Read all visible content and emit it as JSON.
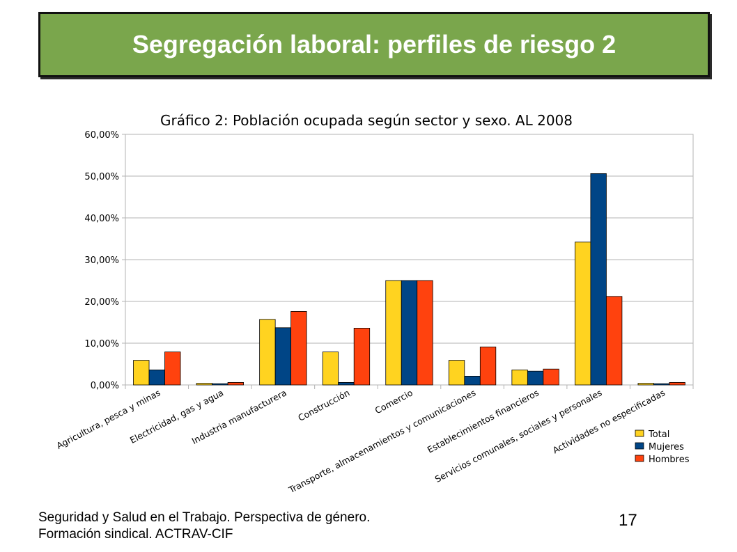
{
  "slide": {
    "title": "Segregación laboral: perfiles de riesgo 2",
    "footer_line1": "Seguridad y Salud en el Trabajo. Perspectiva de género.",
    "footer_line2": "Formación sindical. ACTRAV-CIF",
    "page_number": "17"
  },
  "colors": {
    "header_bg": "#7aa64c",
    "total": "#ffd320",
    "mujeres": "#004586",
    "hombres": "#ff420e"
  },
  "chart_data": {
    "type": "bar",
    "title": "Gráfico 2: Población ocupada según sector y sexo. AL 2008",
    "xlabel": "",
    "ylabel": "",
    "ylim": [
      0,
      60
    ],
    "yticks": [
      "0,00%",
      "10,00%",
      "20,00%",
      "30,00%",
      "40,00%",
      "50,00%",
      "60,00%"
    ],
    "grid": true,
    "legend_position": "bottom-right",
    "categories": [
      "Agricultura, pesca y minas",
      "Electricidad, gas y agua",
      "Industria manufacturera",
      "Construcción",
      "Comercio",
      "Transporte, almacenamientos y comunicaciones",
      "Establecimientos financieros",
      "Servicios comunales, sociales y personales",
      "Actividades no especificadas"
    ],
    "series": [
      {
        "name": "Total",
        "color": "#ffd320",
        "values": [
          5.9,
          0.4,
          15.7,
          7.9,
          25.0,
          5.9,
          3.6,
          34.2,
          0.4
        ]
      },
      {
        "name": "Mujeres",
        "color": "#004586",
        "values": [
          3.6,
          0.3,
          13.7,
          0.6,
          25.0,
          2.1,
          3.3,
          50.6,
          0.3
        ]
      },
      {
        "name": "Hombres",
        "color": "#ff420e",
        "values": [
          7.9,
          0.6,
          17.6,
          13.6,
          25.0,
          9.1,
          3.8,
          21.2,
          0.6
        ]
      }
    ]
  }
}
